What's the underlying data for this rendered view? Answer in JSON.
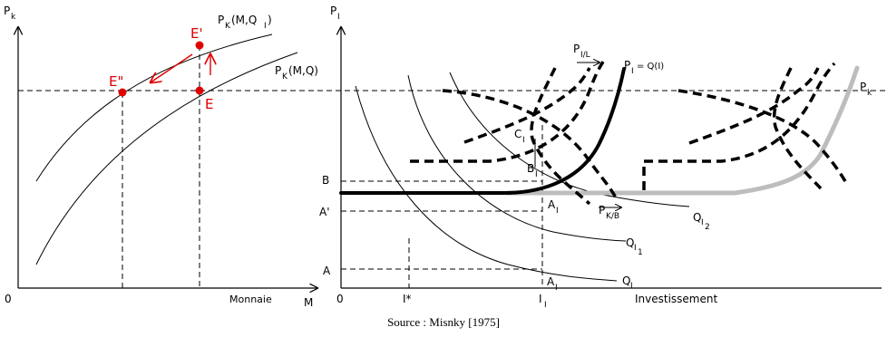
{
  "left_panel": {
    "y_axis_label": "P",
    "y_axis_sub": "k",
    "origin": "0",
    "x_axis_name": "Monnaie",
    "x_axis_label": "M",
    "curve_upper": "P",
    "curve_upper_sub": "K",
    "curve_upper_rest": "(M,Q",
    "curve_upper_rest_sub": "I",
    "curve_upper_close": ")",
    "curve_lower": "P",
    "curve_lower_sub": "K",
    "curve_lower_rest": "(M,Q)",
    "point_e_prime": "E'",
    "point_e_double": "E\"",
    "point_e": "E",
    "point_color": "#e00000"
  },
  "right_panel": {
    "y_axis_label": "P",
    "y_axis_sub": "I",
    "origin": "0",
    "pk_label": "P",
    "pk_sub": "k",
    "tick_b": "B",
    "tick_a_prime": "A'",
    "tick_a": "A",
    "x_tick_istar": "I*",
    "x_tick_i": "I",
    "x_tick_i_sub": "I",
    "x_axis_name": "Investissement",
    "supply_curve": "P",
    "supply_curve_sub": "I",
    "supply_curve_rest": "= Q(I)",
    "pil_label": "P",
    "pil_sub": "I/L",
    "pkb_label": "P",
    "pkb_sub": "K/B",
    "point_c": "C",
    "point_c_sub": "I",
    "point_b": "B",
    "point_b_sub": "I",
    "point_a_upper": "A",
    "point_a_upper_sub": "I",
    "point_a_lower": "A",
    "point_a_lower_sub": "I",
    "iso_q1": "Q",
    "iso_q1_sub": "I",
    "iso_q2": "Q",
    "iso_q2_sub": "I",
    "iso_q2_subsub": "1",
    "iso_q3": "Q",
    "iso_q3_sub": "I",
    "iso_q3_subsub": "2",
    "grey_color": "#bdbdbd"
  },
  "caption": "Source : Misnky [1975]"
}
